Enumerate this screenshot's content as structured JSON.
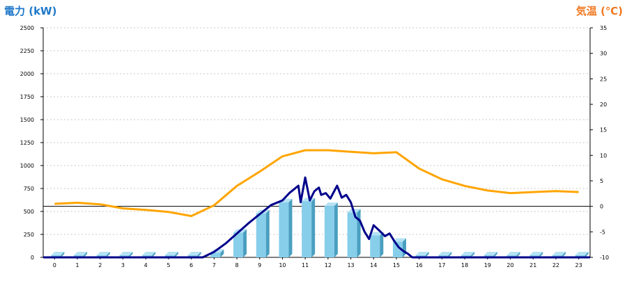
{
  "chart_data": {
    "type": "bar+line",
    "left_axis_label": "電力 (kW)",
    "right_axis_label": "気温 (℃)",
    "left_ylim": [
      0,
      2500
    ],
    "left_ticks": [
      0,
      250,
      500,
      750,
      1000,
      1250,
      1500,
      1750,
      2000,
      2250,
      2500
    ],
    "right_ylim": [
      -10,
      35
    ],
    "right_ticks": [
      -10,
      -5,
      0,
      5,
      10,
      15,
      20,
      25,
      30,
      35
    ],
    "x_ticks": [
      0,
      1,
      2,
      3,
      4,
      5,
      6,
      7,
      8,
      9,
      10,
      11,
      12,
      13,
      14,
      15,
      16,
      17,
      18,
      19,
      20,
      21,
      22,
      23
    ],
    "grid": "horizontal dotted",
    "series": [
      {
        "kind": "bar",
        "axis": "left",
        "color": "#87ceeb",
        "values": [
          0,
          0,
          0,
          0,
          0,
          0,
          0,
          50,
          270,
          480,
          600,
          610,
          560,
          490,
          240,
          170,
          0,
          0,
          0,
          0,
          0,
          0,
          0,
          0
        ]
      },
      {
        "kind": "line",
        "axis": "left",
        "color": "#00008b",
        "points": [
          [
            -0.5,
            0
          ],
          [
            6.5,
            0
          ],
          [
            7,
            60
          ],
          [
            7.5,
            150
          ],
          [
            8,
            260
          ],
          [
            8.5,
            370
          ],
          [
            9,
            470
          ],
          [
            9.5,
            570
          ],
          [
            10,
            620
          ],
          [
            10.3,
            700
          ],
          [
            10.5,
            740
          ],
          [
            10.7,
            780
          ],
          [
            10.8,
            600
          ],
          [
            11,
            870
          ],
          [
            11.2,
            620
          ],
          [
            11.4,
            720
          ],
          [
            11.6,
            760
          ],
          [
            11.7,
            680
          ],
          [
            11.9,
            700
          ],
          [
            12.1,
            640
          ],
          [
            12.4,
            780
          ],
          [
            12.6,
            650
          ],
          [
            12.8,
            680
          ],
          [
            13,
            600
          ],
          [
            13.2,
            440
          ],
          [
            13.4,
            400
          ],
          [
            13.6,
            280
          ],
          [
            13.8,
            200
          ],
          [
            14,
            350
          ],
          [
            14.3,
            280
          ],
          [
            14.5,
            230
          ],
          [
            14.7,
            260
          ],
          [
            14.9,
            180
          ],
          [
            15.1,
            110
          ],
          [
            15.3,
            70
          ],
          [
            15.5,
            40
          ],
          [
            15.7,
            0
          ],
          [
            23.5,
            0
          ]
        ]
      },
      {
        "kind": "line",
        "axis": "right",
        "color": "#ffa500",
        "points": [
          [
            0,
            0.5
          ],
          [
            1,
            0.7
          ],
          [
            2,
            0.4
          ],
          [
            3,
            -0.4
          ],
          [
            4,
            -0.7
          ],
          [
            5,
            -1.1
          ],
          [
            6,
            -1.9
          ],
          [
            7,
            0.2
          ],
          [
            8,
            4
          ],
          [
            9,
            6.8
          ],
          [
            10,
            9.8
          ],
          [
            11,
            11
          ],
          [
            12,
            11
          ],
          [
            13,
            10.7
          ],
          [
            14,
            10.4
          ],
          [
            15,
            10.6
          ],
          [
            16,
            7.4
          ],
          [
            17,
            5.3
          ],
          [
            18,
            4
          ],
          [
            19,
            3.1
          ],
          [
            20,
            2.6
          ],
          [
            21,
            2.8
          ],
          [
            22,
            3
          ],
          [
            23,
            2.8
          ]
        ]
      }
    ]
  }
}
